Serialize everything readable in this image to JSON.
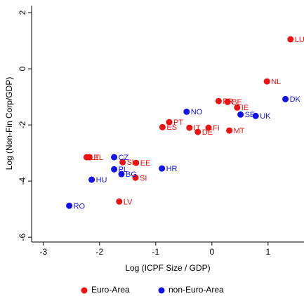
{
  "chart_data": {
    "type": "scatter",
    "x_label": "Log (ICPF Size / GDP)",
    "y_label": "Log (Non-Fin Corp/GDP)",
    "xlim": [
      -3.21,
      1.64
    ],
    "ylim": [
      -6.17,
      2.25
    ],
    "xticks": [
      -3,
      -2,
      -1,
      0,
      1
    ],
    "yticks": [
      -6,
      -4,
      -2,
      0,
      2
    ],
    "series": [
      {
        "name": "Euro-Area",
        "color": "#ee1111",
        "labels": [
          "LU",
          "NL",
          "FR",
          "BE",
          "IE",
          "MT",
          "FI",
          "IT",
          "DE",
          "PT",
          "ES",
          "SK",
          "EE",
          "SI",
          "LV",
          "LT",
          "EL"
        ],
        "x": [
          1.4,
          0.98,
          0.12,
          0.28,
          0.45,
          0.31,
          -0.06,
          -0.4,
          -0.25,
          -0.76,
          -0.88,
          -1.59,
          -1.35,
          -1.36,
          -1.65,
          -2.23,
          -2.18
        ],
        "values": [
          1.05,
          -0.45,
          -1.15,
          -1.18,
          -1.38,
          -2.2,
          -2.1,
          -2.1,
          -2.25,
          -1.9,
          -2.08,
          -3.33,
          -3.35,
          -3.88,
          -4.73,
          -3.15,
          -3.15
        ]
      },
      {
        "name": "non-Euro-Area",
        "color": "#1111ee",
        "labels": [
          "DK",
          "UK",
          "SE",
          "NO",
          "HR",
          "CZ",
          "PL",
          "BG",
          "HU",
          "RO"
        ],
        "x": [
          1.31,
          0.78,
          0.51,
          -0.45,
          -0.89,
          -1.74,
          -1.74,
          -1.61,
          -2.14,
          -2.54
        ],
        "values": [
          -1.08,
          -1.68,
          -1.63,
          -1.53,
          -3.55,
          -3.15,
          -3.58,
          -3.75,
          -3.95,
          -4.88
        ]
      }
    ]
  }
}
